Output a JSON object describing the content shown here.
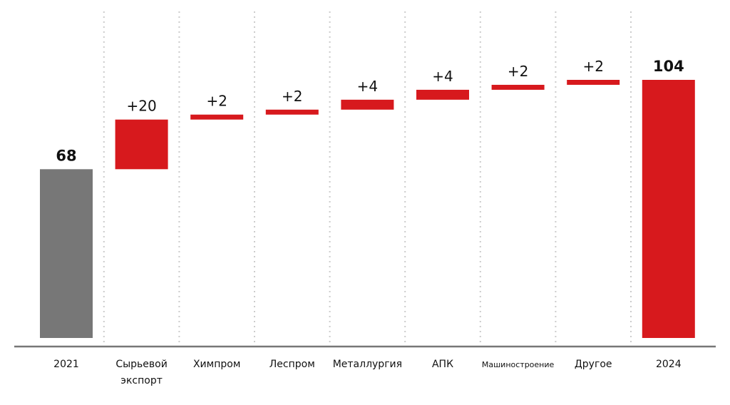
{
  "chart_data": {
    "type": "bar",
    "subtype": "waterfall",
    "categories": [
      "2021",
      "Сырьевой\nэкспорт",
      "Химпром",
      "Леспром",
      "Металлургия",
      "АПК",
      "Машиностроение",
      "Другое",
      "2024"
    ],
    "values": [
      68,
      20,
      2,
      2,
      4,
      4,
      2,
      2,
      104
    ],
    "labels": [
      "68",
      "+20",
      "+2",
      "+2",
      "+4",
      "+4",
      "+2",
      "+2",
      "104"
    ],
    "kinds": [
      "total",
      "delta",
      "delta",
      "delta",
      "delta",
      "delta",
      "delta",
      "delta",
      "total"
    ],
    "ylim": [
      0,
      104
    ],
    "grid": "vertical dotted separators",
    "legend": "none",
    "colors": {
      "start_total": "#777777",
      "increase": "#d7191d",
      "end_total": "#d7191d",
      "axis": "#777777",
      "separator": "#cccccc"
    }
  }
}
